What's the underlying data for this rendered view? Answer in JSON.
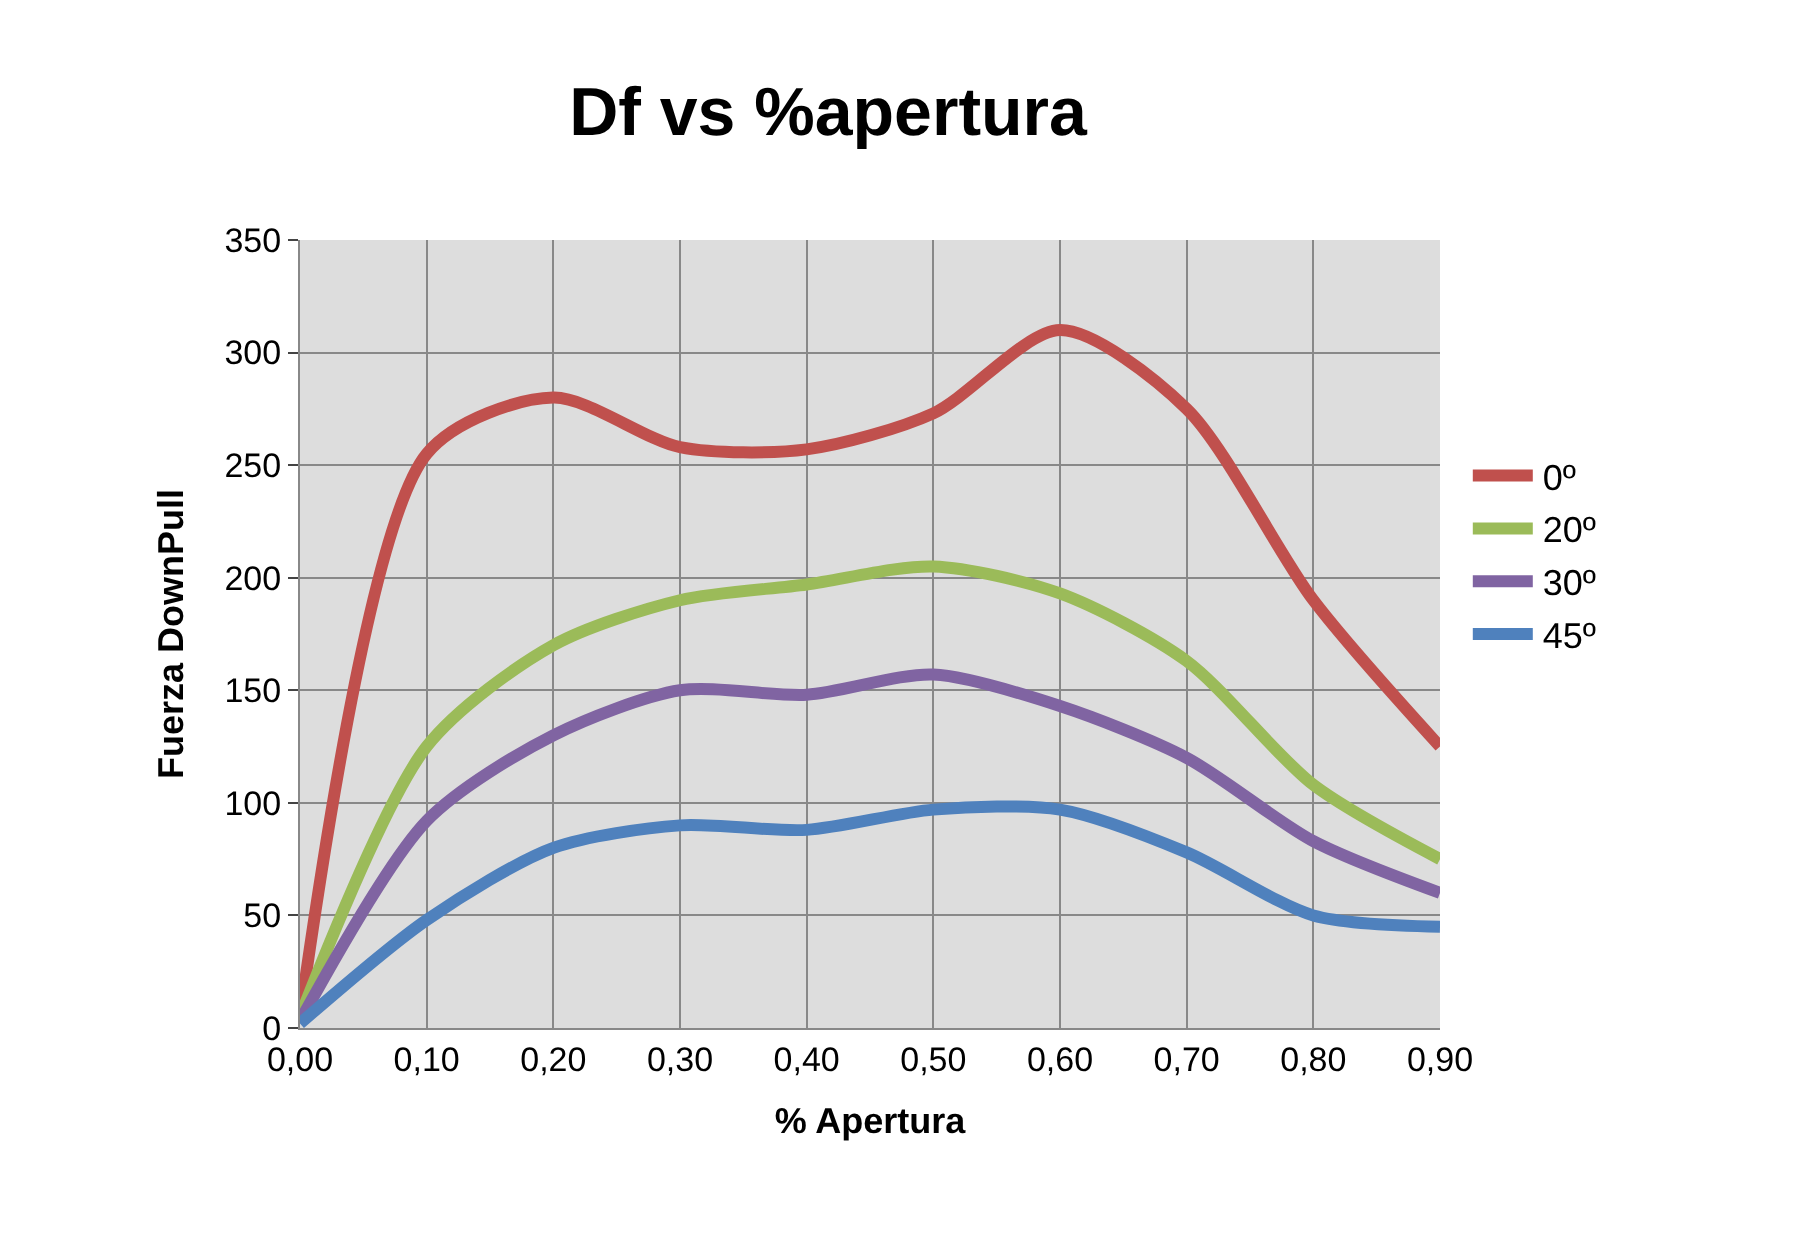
{
  "chart_data": {
    "type": "line",
    "title": "Df vs %apertura",
    "xlabel": "% Apertura",
    "ylabel": "Fuerza DownPull",
    "x": [
      0,
      0.1,
      0.2,
      0.3,
      0.4,
      0.5,
      0.6,
      0.7,
      0.8,
      0.9
    ],
    "series": [
      {
        "name": "0º",
        "color": "#c0504d",
        "values": [
          5,
          255,
          280,
          258,
          257,
          273,
          310,
          275,
          190,
          125
        ]
      },
      {
        "name": "20º",
        "color": "#9bbb59",
        "values": [
          5,
          125,
          170,
          190,
          197,
          205,
          193,
          163,
          108,
          75
        ]
      },
      {
        "name": "30º",
        "color": "#8064a2",
        "values": [
          3,
          92,
          130,
          150,
          148,
          157,
          143,
          120,
          83,
          60
        ]
      },
      {
        "name": "45º",
        "color": "#4f81bd",
        "values": [
          2,
          48,
          80,
          90,
          88,
          97,
          97,
          78,
          50,
          45
        ]
      }
    ],
    "xlim": [
      0,
      0.9
    ],
    "xticks": [
      {
        "value": 0,
        "label": "0,00"
      },
      {
        "value": 0.1,
        "label": "0,10"
      },
      {
        "value": 0.2,
        "label": "0,20"
      },
      {
        "value": 0.3,
        "label": "0,30"
      },
      {
        "value": 0.4,
        "label": "0,40"
      },
      {
        "value": 0.5,
        "label": "0,50"
      },
      {
        "value": 0.6,
        "label": "0,60"
      },
      {
        "value": 0.7,
        "label": "0,70"
      },
      {
        "value": 0.8,
        "label": "0,80"
      },
      {
        "value": 0.9,
        "label": "0,90"
      }
    ],
    "ylim": [
      0,
      350
    ],
    "yticks": [
      0,
      50,
      100,
      150,
      200,
      250,
      300,
      350
    ],
    "grid": true,
    "legend": "right",
    "marker": "none",
    "line_style": "solid"
  }
}
